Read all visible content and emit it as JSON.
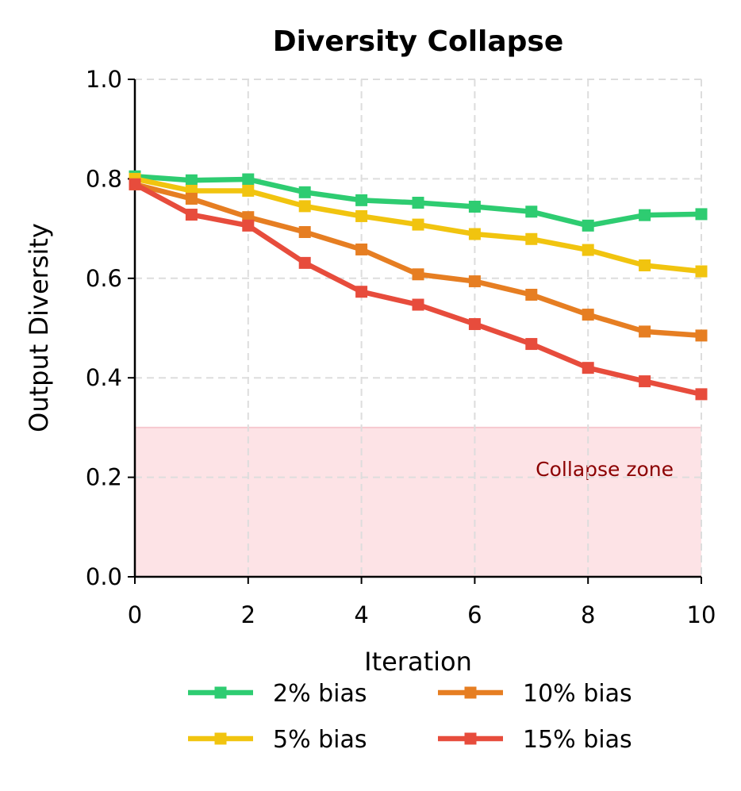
{
  "chart_data": {
    "type": "line",
    "title": "Diversity Collapse",
    "xlabel": "Iteration",
    "ylabel": "Output Diversity",
    "xlim": [
      0,
      10
    ],
    "ylim": [
      0,
      1.0
    ],
    "x": [
      0,
      1,
      2,
      3,
      4,
      5,
      6,
      7,
      8,
      9,
      10
    ],
    "xticks": [
      "0",
      "2",
      "4",
      "6",
      "8",
      "10"
    ],
    "xtick_values": [
      0,
      2,
      4,
      6,
      8,
      10
    ],
    "yticks": [
      "0.0",
      "0.2",
      "0.4",
      "0.6",
      "0.8",
      "1.0"
    ],
    "ytick_values": [
      0,
      0.2,
      0.4,
      0.6,
      0.8,
      1.0
    ],
    "grid": true,
    "series": [
      {
        "name": "2% bias",
        "color": "#2ecc71",
        "marker": "square",
        "values": [
          0.805,
          0.797,
          0.799,
          0.773,
          0.757,
          0.752,
          0.744,
          0.734,
          0.706,
          0.727,
          0.729
        ]
      },
      {
        "name": "5% bias",
        "color": "#f1c40f",
        "marker": "square",
        "values": [
          0.8,
          0.776,
          0.776,
          0.745,
          0.725,
          0.708,
          0.689,
          0.679,
          0.657,
          0.626,
          0.614
        ]
      },
      {
        "name": "10% bias",
        "color": "#e67e22",
        "marker": "square",
        "values": [
          0.789,
          0.76,
          0.723,
          0.693,
          0.658,
          0.608,
          0.594,
          0.567,
          0.527,
          0.493,
          0.485
        ]
      },
      {
        "name": "15% bias",
        "color": "#e74c3c",
        "marker": "square",
        "values": [
          0.789,
          0.728,
          0.706,
          0.631,
          0.573,
          0.547,
          0.508,
          0.468,
          0.42,
          0.393,
          0.367
        ]
      }
    ],
    "annotations": [
      {
        "type": "shaded_region",
        "y_from": 0.0,
        "y_to": 0.3,
        "label": "Collapse zone",
        "fill": "#fde3e6",
        "text_color": "#8b0000"
      }
    ],
    "legend": {
      "position": "bottom-center",
      "columns": 2
    }
  }
}
